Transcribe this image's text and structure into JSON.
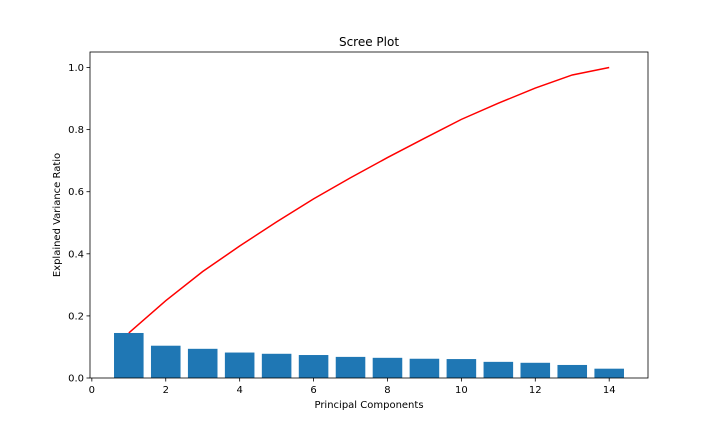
{
  "chart_data": {
    "type": "bar",
    "title": "Scree Plot",
    "xlabel": "Principal Components",
    "ylabel": "Explained Variance Ratio",
    "x": [
      1,
      2,
      3,
      4,
      5,
      6,
      7,
      8,
      9,
      10,
      11,
      12,
      13,
      14
    ],
    "series": [
      {
        "type": "bar",
        "values": [
          0.145,
          0.104,
          0.094,
          0.082,
          0.078,
          0.074,
          0.068,
          0.065,
          0.062,
          0.061,
          0.052,
          0.049,
          0.042,
          0.03
        ],
        "color": "#1f77b4"
      },
      {
        "type": "line",
        "values": [
          0.145,
          0.249,
          0.343,
          0.425,
          0.503,
          0.577,
          0.645,
          0.71,
          0.772,
          0.833,
          0.885,
          0.934,
          0.976,
          1.0
        ],
        "color": "#ff0000"
      }
    ],
    "xlim": [
      -0.05,
      15.05
    ],
    "ylim": [
      0,
      1.05
    ],
    "xticks": [
      "0",
      "2",
      "4",
      "6",
      "8",
      "10",
      "12",
      "14"
    ],
    "yticks": [
      "0.0",
      "0.2",
      "0.4",
      "0.6",
      "0.8",
      "1.0"
    ],
    "grid": false,
    "legend": "none"
  }
}
